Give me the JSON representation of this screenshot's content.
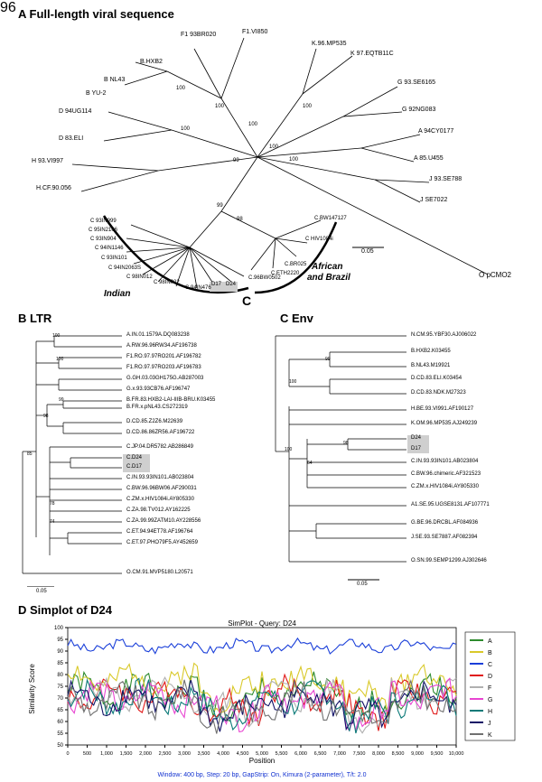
{
  "panelA": {
    "title": "A  Full-length viral sequence",
    "title_fontsize": 13,
    "labels": {
      "F193BR020": "F1 93BR020",
      "F1VI850": "F1.VI850",
      "BHXB2": "B.HXB2",
      "BNL43": "B NL43",
      "BYU2": "B YU-2",
      "D94UG114": "D 94UG114",
      "D83ELI": "D 83.ELI",
      "H93VI997": "H 93.VI997",
      "HCF90056": "H.CF.90.056",
      "K96MP535": "K.96.MP535",
      "K97EQTB11C": "K 97.EQTB11C",
      "G93SE6165": "G 93.SE6165",
      "G92NG083": "G 92NG083",
      "A94CY0177": "A 94CY0177",
      "A85U455": "A 85.U455",
      "J93SE788": "J 93.SE788",
      "JSE7022": "J SE7022",
      "OpCMO2": "O pCMO2",
      "C93IN999": "C 93IN999",
      "C95IN2106": "C 95IN2106",
      "C93IN904": "C 93IN904",
      "C94IN1146": "C 94IN1146",
      "C93IN191": "C 93IN101",
      "C94IN206S": "C 94IN2063S",
      "C98IN012": "C 98IN012",
      "C98IN022": "C 98IN022",
      "C94IN476": "C 94IN476",
      "D17": "D17",
      "D24": "D24",
      "CBW147127": "C.BW147127",
      "CHIV1084i": "C HIV1084i",
      "C96BW502": "C.96BW0502",
      "CBR025": "C.BR025",
      "CETH2220": "C.ETH2220",
      "Indian": "Indian",
      "African": "African",
      "andBrazil": "and Brazil",
      "bigC": "C",
      "scale": "0.05"
    },
    "boot": [
      "100",
      "100",
      "100",
      "100",
      "100",
      "100",
      "100",
      "100",
      "100",
      "100",
      "100",
      "99",
      "99",
      "99",
      "98",
      "96",
      "95"
    ],
    "label_fontsize": 7,
    "region_fontsize": 10,
    "bigC_fontsize": 14
  },
  "panelB": {
    "title": "B  LTR",
    "title_fontsize": 13,
    "taxa": [
      "A.IN.01.1579A.DQ083238",
      "A.RW.96.96RW34.AF196738",
      "F1.RO.97.97RO201.AF196782",
      "F1.RO.97.97RO203.AF196783",
      "G.GH.03.03GH175G.AB287003",
      "G.x.93.93CB76.AF196747",
      "B.FR.83.HXB2-LAI-IIIB-BRU.K03455",
      "B.FR.x.pNL43.CS272319",
      "D.CD.85.Z2Z6.M22639",
      "D.CD.86.86ZR56.AF196722",
      "C.JP.04.DR5782.AB286849",
      "C.D24",
      "C.D17",
      "C.IN.93.93IN101.AB023804",
      "C.BW.96.96BW06.AF290031",
      "C.ZM.x.HIV1084i.AY805330",
      "C.ZA.98.TV012.AY162225",
      "C.ZA.99.99ZATM10.AY228556",
      "C.ET.94.94ET78.AF196764",
      "C.ET.97.PHO79F5.AY452659",
      "O.CM.91.MVP5180.L20571"
    ],
    "highlights": [
      "C.D24",
      "C.D17"
    ],
    "boot": [
      "100",
      "100",
      "99",
      "98",
      "95",
      "85",
      "78",
      "74"
    ],
    "scale": "0.05",
    "label_fontsize": 6
  },
  "panelC": {
    "title": "C  Env",
    "title_fontsize": 13,
    "taxa": [
      "N.CM.95.YBF30.AJ006022",
      "B.HXB2.K03455",
      "B.NL43.M19921",
      "D.CD.83.ELI.K03454",
      "D.CD.83.NDK.M27323",
      "H.BE.93.VI991.AF190127",
      "K.OM.96.MP535.AJ249239",
      "D24",
      "D17",
      "C.IN.93.93IN101.AB023804",
      "C.BW.96.chimeric.AF321523",
      "C.ZM.x.HIV1084i.AY805330",
      "A1.SE.95.UGSE8131.AF107771",
      "G.BE.96.DRCBL.AF084936",
      "J.SE.93.SE7887.AF082394",
      "O.SN.99.SEMP1299.AJ302646"
    ],
    "highlights": [
      "D24",
      "D17"
    ],
    "boot": [
      "100",
      "100",
      "100",
      "100",
      "100",
      "99",
      "98",
      "64"
    ],
    "scale": "0.05",
    "label_fontsize": 6
  },
  "panelD": {
    "title": "D  Simplot of D24",
    "title_fontsize": 13,
    "plot_title": "SimPlot - Query: D24",
    "ylabel": "Similarity Score",
    "xlabel": "Position",
    "ylim": [
      50,
      100
    ],
    "ytick_step": 5,
    "xlim": [
      0,
      10000
    ],
    "xtick_step": 500,
    "footer": "Window: 400 bp, Step: 20 bp, GapStrip: On, Kimura (2-parameter), T/t: 2.0",
    "legend": [
      {
        "label": "A",
        "color": "#2e8b2e"
      },
      {
        "label": "B",
        "color": "#d9c92a"
      },
      {
        "label": "C",
        "color": "#1a3fd9"
      },
      {
        "label": "D",
        "color": "#e01818"
      },
      {
        "label": "F",
        "color": "#b0b0b0"
      },
      {
        "label": "G",
        "color": "#e845d1"
      },
      {
        "label": "H",
        "color": "#0b7a78"
      },
      {
        "label": "J",
        "color": "#111166"
      },
      {
        "label": "K",
        "color": "#707070"
      }
    ],
    "background": "#ffffff",
    "box_color": "#000000",
    "label_fontsize": 8
  }
}
